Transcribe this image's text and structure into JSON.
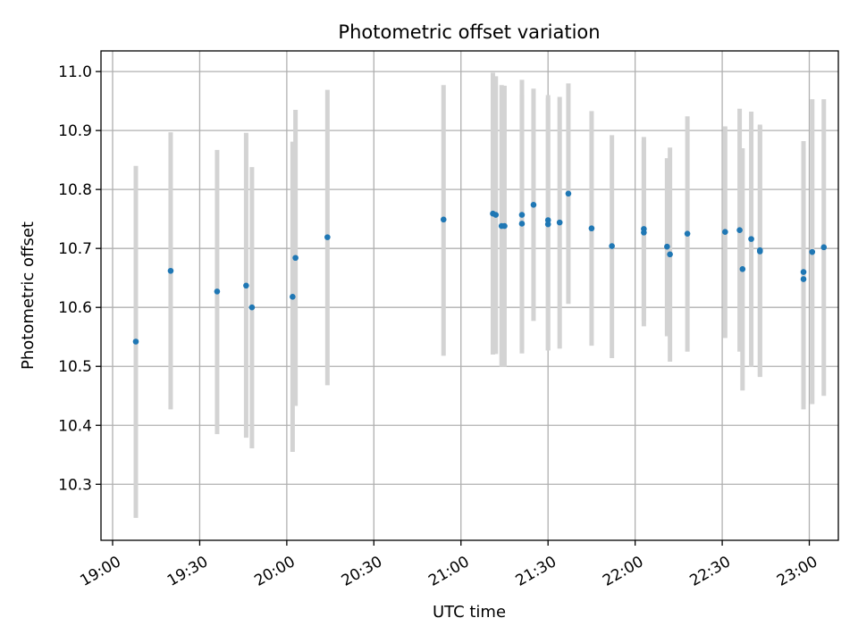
{
  "chart_data": {
    "type": "scatter",
    "title": "Photometric offset variation",
    "xlabel": "UTC time",
    "ylabel": "Photometric offset",
    "grid": true,
    "xlim": [
      "18:56",
      "23:10"
    ],
    "ylim": [
      10.205,
      11.035
    ],
    "x_ticks": [
      "19:00",
      "19:30",
      "20:00",
      "20:30",
      "21:00",
      "21:30",
      "22:00",
      "22:30",
      "23:00"
    ],
    "y_ticks": [
      10.3,
      10.4,
      10.5,
      10.6,
      10.7,
      10.8,
      10.9,
      11.0
    ],
    "y_tick_labels": [
      "10.3",
      "10.4",
      "10.5",
      "10.6",
      "10.7",
      "10.8",
      "10.9",
      "11.0"
    ],
    "colors": {
      "points": "#1f77b4",
      "error_bars": "#d3d3d3",
      "grid": "#b0b0b0"
    },
    "points": [
      {
        "time": "19:08",
        "y": 10.542,
        "lo": 10.243,
        "hi": 10.84
      },
      {
        "time": "19:20",
        "y": 10.662,
        "lo": 10.427,
        "hi": 10.897
      },
      {
        "time": "19:36",
        "y": 10.627,
        "lo": 10.385,
        "hi": 10.867
      },
      {
        "time": "19:46",
        "y": 10.637,
        "lo": 10.379,
        "hi": 10.896
      },
      {
        "time": "19:48",
        "y": 10.6,
        "lo": 10.361,
        "hi": 10.838
      },
      {
        "time": "20:02",
        "y": 10.618,
        "lo": 10.355,
        "hi": 10.881
      },
      {
        "time": "20:03",
        "y": 10.684,
        "lo": 10.433,
        "hi": 10.935
      },
      {
        "time": "20:14",
        "y": 10.719,
        "lo": 10.468,
        "hi": 10.969
      },
      {
        "time": "20:54",
        "y": 10.749,
        "lo": 10.518,
        "hi": 10.977
      },
      {
        "time": "21:11",
        "y": 10.759,
        "lo": 10.52,
        "hi": 10.998
      },
      {
        "time": "21:12",
        "y": 10.757,
        "lo": 10.521,
        "hi": 10.992
      },
      {
        "time": "21:14",
        "y": 10.738,
        "lo": 10.499,
        "hi": 10.977
      },
      {
        "time": "21:15",
        "y": 10.738,
        "lo": 10.499,
        "hi": 10.976
      },
      {
        "time": "21:21",
        "y": 10.757,
        "lo": 10.528,
        "hi": 10.986
      },
      {
        "time": "21:21",
        "y": 10.742,
        "lo": 10.522,
        "hi": 10.961
      },
      {
        "time": "21:25",
        "y": 10.774,
        "lo": 10.577,
        "hi": 10.971
      },
      {
        "time": "21:30",
        "y": 10.748,
        "lo": 10.527,
        "hi": 10.96
      },
      {
        "time": "21:30",
        "y": 10.741,
        "lo": 10.527,
        "hi": 10.955
      },
      {
        "time": "21:34",
        "y": 10.744,
        "lo": 10.53,
        "hi": 10.957
      },
      {
        "time": "21:37",
        "y": 10.793,
        "lo": 10.606,
        "hi": 10.98
      },
      {
        "time": "21:45",
        "y": 10.734,
        "lo": 10.535,
        "hi": 10.933
      },
      {
        "time": "21:52",
        "y": 10.704,
        "lo": 10.514,
        "hi": 10.892
      },
      {
        "time": "22:03",
        "y": 10.733,
        "lo": 10.577,
        "hi": 10.889
      },
      {
        "time": "22:03",
        "y": 10.727,
        "lo": 10.568,
        "hi": 10.883
      },
      {
        "time": "22:11",
        "y": 10.703,
        "lo": 10.551,
        "hi": 10.853
      },
      {
        "time": "22:12",
        "y": 10.69,
        "lo": 10.508,
        "hi": 10.871
      },
      {
        "time": "22:18",
        "y": 10.725,
        "lo": 10.525,
        "hi": 10.924
      },
      {
        "time": "22:31",
        "y": 10.728,
        "lo": 10.548,
        "hi": 10.907
      },
      {
        "time": "22:36",
        "y": 10.731,
        "lo": 10.525,
        "hi": 10.937
      },
      {
        "time": "22:37",
        "y": 10.665,
        "lo": 10.459,
        "hi": 10.87
      },
      {
        "time": "22:40",
        "y": 10.716,
        "lo": 10.499,
        "hi": 10.932
      },
      {
        "time": "22:43",
        "y": 10.697,
        "lo": 10.482,
        "hi": 10.91
      },
      {
        "time": "22:43",
        "y": 10.695,
        "lo": 10.483,
        "hi": 10.908
      },
      {
        "time": "22:58",
        "y": 10.648,
        "lo": 10.427,
        "hi": 10.87
      },
      {
        "time": "22:58",
        "y": 10.66,
        "lo": 10.437,
        "hi": 10.882
      },
      {
        "time": "23:01",
        "y": 10.694,
        "lo": 10.436,
        "hi": 10.953
      },
      {
        "time": "23:05",
        "y": 10.702,
        "lo": 10.45,
        "hi": 10.953
      }
    ]
  }
}
